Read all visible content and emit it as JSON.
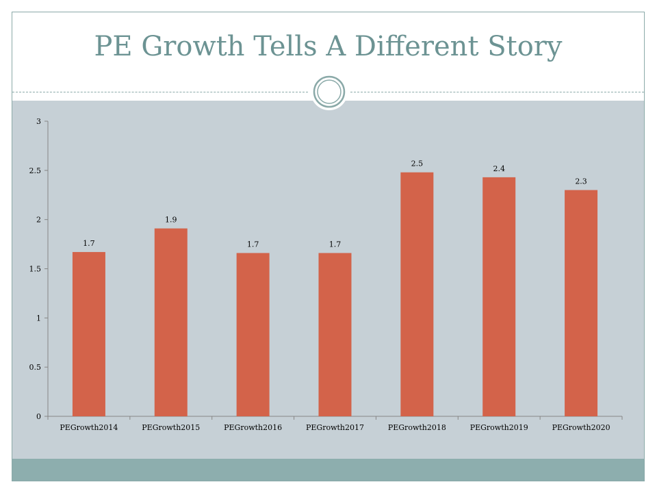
{
  "slide": {
    "title": "PE Growth Tells A Different Story"
  },
  "colors": {
    "title": "#6c9393",
    "chart_background": "#c6d0d6",
    "bar": "#d3634a",
    "band": "#8daeae",
    "frame": "#8aa9a8"
  },
  "chart_data": {
    "type": "bar",
    "title": "",
    "xlabel": "",
    "ylabel": "",
    "categories": [
      "PEGrowth2014",
      "PEGrowth2015",
      "PEGrowth2016",
      "PEGrowth2017",
      "PEGrowth2018",
      "PEGrowth2019",
      "PEGrowth2020"
    ],
    "values": [
      1.67,
      1.91,
      1.66,
      1.66,
      2.48,
      2.43,
      2.3
    ],
    "data_labels": [
      "1.7",
      "1.9",
      "1.7",
      "1.7",
      "2.5",
      "2.4",
      "2.3"
    ],
    "ylim": [
      0,
      3
    ],
    "y_ticks": [
      0,
      0.5,
      1,
      1.5,
      2,
      2.5,
      3
    ],
    "y_tick_labels": [
      "0",
      "0.5",
      "1",
      "1.5",
      "2",
      "2.5",
      "3"
    ],
    "grid": false,
    "legend": "none"
  }
}
